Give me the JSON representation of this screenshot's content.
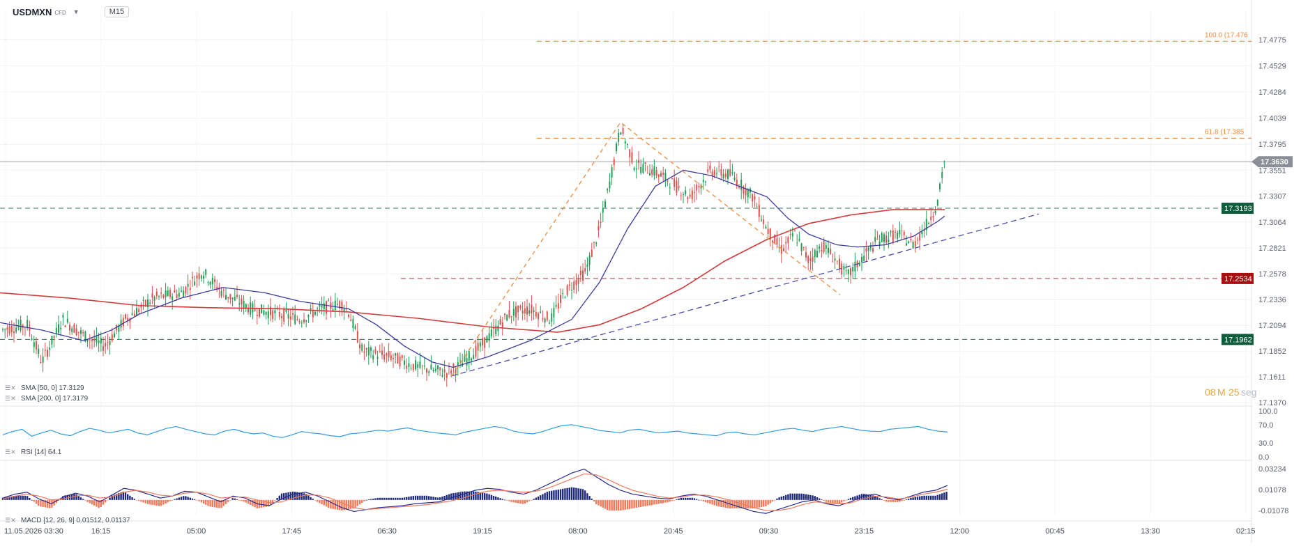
{
  "header": {
    "symbol": "USDMXN",
    "type": "CFD",
    "timeframe": "M15"
  },
  "countdown": {
    "minutes": "08",
    "m_unit": "M",
    "seconds": "25",
    "s_unit": "seg"
  },
  "indicators": {
    "sma50": "SMA [50, 0] 17.3129",
    "sma200": "SMA [200, 0] 17.3179",
    "rsi": "RSI [14] 64.1",
    "macd": "MACD [12, 26, 9] 0.01512, 0.01137"
  },
  "colors": {
    "up": "#1f9e54",
    "down": "#d9534f",
    "sma50": "#3c3a9e",
    "sma200": "#d13c3c",
    "fib": "#f08a3c",
    "support_green": "#0f5c3c",
    "resist_red": "#a60f0f",
    "trend": "#4a4aa6",
    "rsi": "#2e9be0",
    "macd_line": "#2a2a8c",
    "signal_line": "#f07a5a",
    "hist_pos": "#1f2a7a",
    "hist_neg": "#f07a5a",
    "price_tag": "#8a8e96",
    "countdown": "#f0a030"
  },
  "chart_data": {
    "type": "candlestick",
    "price_axis": {
      "ticks": [
        "17.4775",
        "17.4529",
        "17.4284",
        "17.4039",
        "17.3795",
        "17.3551",
        "17.3307",
        "17.3064",
        "17.2821",
        "17.2578",
        "17.2336",
        "17.2094",
        "17.1852",
        "17.1611",
        "17.1370"
      ],
      "range": [
        17.137,
        17.4775
      ]
    },
    "time_axis": {
      "labels": [
        "11.05.2026 03:30",
        "16:15",
        "05:00",
        "17:45",
        "06:30",
        "19:15",
        "08:00",
        "20:45",
        "09:30",
        "23:15",
        "12:00",
        "00:45",
        "13:30",
        "02:15"
      ]
    },
    "last_price": {
      "label": "17.3630",
      "value": 17.363
    },
    "levels": [
      {
        "label": "17.3193",
        "value": 17.3193,
        "style": "green"
      },
      {
        "label": "17.2534",
        "value": 17.2534,
        "style": "red"
      },
      {
        "label": "17.1962",
        "value": 17.1962,
        "style": "green"
      }
    ],
    "fibonacci": [
      {
        "label": "100.0 (17.476",
        "value": 17.476
      },
      {
        "label": "61.8 (17.385",
        "value": 17.385
      }
    ],
    "price_path": [
      [
        0,
        17.205
      ],
      [
        40,
        17.21
      ],
      [
        60,
        17.175
      ],
      [
        90,
        17.215
      ],
      [
        120,
        17.2
      ],
      [
        150,
        17.19
      ],
      [
        180,
        17.215
      ],
      [
        220,
        17.235
      ],
      [
        260,
        17.24
      ],
      [
        290,
        17.26
      ],
      [
        320,
        17.24
      ],
      [
        360,
        17.225
      ],
      [
        400,
        17.22
      ],
      [
        430,
        17.215
      ],
      [
        460,
        17.225
      ],
      [
        490,
        17.23
      ],
      [
        500,
        17.222
      ],
      [
        520,
        17.185
      ],
      [
        560,
        17.18
      ],
      [
        600,
        17.17
      ],
      [
        640,
        17.165
      ],
      [
        660,
        17.172
      ],
      [
        690,
        17.19
      ],
      [
        710,
        17.205
      ],
      [
        730,
        17.22
      ],
      [
        760,
        17.225
      ],
      [
        790,
        17.215
      ],
      [
        810,
        17.24
      ],
      [
        840,
        17.26
      ],
      [
        860,
        17.3
      ],
      [
        875,
        17.345
      ],
      [
        890,
        17.395
      ],
      [
        910,
        17.36
      ],
      [
        935,
        17.355
      ],
      [
        960,
        17.345
      ],
      [
        990,
        17.33
      ],
      [
        1020,
        17.355
      ],
      [
        1050,
        17.35
      ],
      [
        1080,
        17.33
      ],
      [
        1100,
        17.3
      ],
      [
        1120,
        17.28
      ],
      [
        1140,
        17.295
      ],
      [
        1160,
        17.27
      ],
      [
        1180,
        17.285
      ],
      [
        1200,
        17.27
      ],
      [
        1215,
        17.255
      ],
      [
        1240,
        17.275
      ],
      [
        1260,
        17.29
      ],
      [
        1290,
        17.295
      ],
      [
        1310,
        17.285
      ],
      [
        1330,
        17.305
      ],
      [
        1345,
        17.325
      ],
      [
        1355,
        17.365
      ]
    ],
    "sma50_path": [
      [
        0,
        17.212
      ],
      [
        60,
        17.205
      ],
      [
        120,
        17.195
      ],
      [
        160,
        17.205
      ],
      [
        200,
        17.22
      ],
      [
        260,
        17.235
      ],
      [
        320,
        17.245
      ],
      [
        380,
        17.24
      ],
      [
        430,
        17.232
      ],
      [
        470,
        17.228
      ],
      [
        500,
        17.225
      ],
      [
        540,
        17.21
      ],
      [
        580,
        17.19
      ],
      [
        620,
        17.175
      ],
      [
        650,
        17.17
      ],
      [
        700,
        17.18
      ],
      [
        760,
        17.195
      ],
      [
        820,
        17.215
      ],
      [
        860,
        17.25
      ],
      [
        900,
        17.3
      ],
      [
        940,
        17.34
      ],
      [
        980,
        17.355
      ],
      [
        1020,
        17.35
      ],
      [
        1060,
        17.34
      ],
      [
        1100,
        17.33
      ],
      [
        1130,
        17.31
      ],
      [
        1160,
        17.295
      ],
      [
        1200,
        17.285
      ],
      [
        1230,
        17.283
      ],
      [
        1270,
        17.285
      ],
      [
        1310,
        17.293
      ],
      [
        1345,
        17.307
      ],
      [
        1355,
        17.312
      ]
    ],
    "sma200_path": [
      [
        0,
        17.24
      ],
      [
        100,
        17.235
      ],
      [
        200,
        17.228
      ],
      [
        300,
        17.226
      ],
      [
        400,
        17.225
      ],
      [
        500,
        17.222
      ],
      [
        600,
        17.216
      ],
      [
        700,
        17.208
      ],
      [
        800,
        17.203
      ],
      [
        860,
        17.21
      ],
      [
        920,
        17.225
      ],
      [
        980,
        17.245
      ],
      [
        1040,
        17.27
      ],
      [
        1100,
        17.29
      ],
      [
        1160,
        17.305
      ],
      [
        1220,
        17.313
      ],
      [
        1280,
        17.318
      ],
      [
        1355,
        17.318
      ]
    ],
    "trendline": [
      [
        648,
        17.162
      ],
      [
        1490,
        17.314
      ]
    ],
    "fib_swing": [
      [
        648,
        17.162
      ],
      [
        890,
        17.4
      ],
      [
        1205,
        17.238
      ]
    ],
    "rsi_axis": {
      "ticks": [
        "100.0",
        "70.0",
        "30.0",
        "0.0"
      ]
    },
    "rsi_values": [
      48,
      55,
      60,
      45,
      52,
      58,
      50,
      46,
      55,
      62,
      58,
      52,
      56,
      60,
      52,
      48,
      55,
      62,
      66,
      60,
      55,
      50,
      48,
      56,
      60,
      54,
      50,
      52,
      45,
      42,
      48,
      55,
      52,
      50,
      46,
      44,
      50,
      52,
      55,
      58,
      56,
      60,
      63,
      58,
      55,
      52,
      50,
      48,
      54,
      58,
      62,
      66,
      63,
      56,
      52,
      50,
      55,
      62,
      68,
      70,
      66,
      62,
      57,
      55,
      52,
      58,
      60,
      56,
      52,
      54,
      56,
      52,
      50,
      48,
      46,
      52,
      54,
      50,
      48,
      52,
      56,
      60,
      62,
      58,
      55,
      60,
      63,
      66,
      62,
      58,
      56,
      55,
      60,
      62,
      64,
      66,
      60,
      56,
      54
    ],
    "macd_axis": {
      "ticks": [
        "0.03234",
        "0.01078",
        "-0.01078"
      ]
    },
    "macd_line": [
      0.002,
      0.006,
      0.008,
      0.001,
      -0.004,
      0.003,
      0.007,
      0.004,
      -0.002,
      0.005,
      0.012,
      0.01,
      0.006,
      0.002,
      0.004,
      0.009,
      0.008,
      0.003,
      -0.002,
      0.004,
      0.002,
      -0.004,
      -0.006,
      0.001,
      0.006,
      0.008,
      0.004,
      -0.002,
      -0.008,
      -0.012,
      -0.01,
      -0.008,
      -0.007,
      -0.006,
      -0.004,
      -0.003,
      -0.002,
      0.002,
      0.006,
      0.01,
      0.012,
      0.011,
      0.008,
      0.006,
      0.01,
      0.016,
      0.022,
      0.028,
      0.032,
      0.024,
      0.016,
      0.01,
      0.006,
      0.004,
      0.002,
      0.001,
      0.004,
      0.006,
      0.004,
      0.0,
      -0.004,
      -0.008,
      -0.012,
      -0.014,
      -0.01,
      -0.006,
      -0.002,
      0.0,
      -0.004,
      -0.006,
      -0.002,
      0.004,
      0.006,
      0.002,
      0.0,
      0.004,
      0.008,
      0.01,
      0.015
    ],
    "signal_line": [
      0.001,
      0.004,
      0.006,
      0.004,
      0.0,
      0.001,
      0.004,
      0.005,
      0.002,
      0.003,
      0.008,
      0.01,
      0.008,
      0.005,
      0.004,
      0.007,
      0.008,
      0.006,
      0.002,
      0.003,
      0.003,
      0.0,
      -0.003,
      -0.002,
      0.002,
      0.005,
      0.005,
      0.002,
      -0.003,
      -0.008,
      -0.01,
      -0.009,
      -0.008,
      -0.007,
      -0.006,
      -0.005,
      -0.003,
      -0.001,
      0.002,
      0.006,
      0.009,
      0.01,
      0.009,
      0.008,
      0.009,
      0.012,
      0.017,
      0.022,
      0.027,
      0.026,
      0.021,
      0.015,
      0.01,
      0.007,
      0.004,
      0.002,
      0.003,
      0.005,
      0.005,
      0.003,
      0.0,
      -0.004,
      -0.008,
      -0.011,
      -0.011,
      -0.009,
      -0.005,
      -0.002,
      -0.003,
      -0.004,
      -0.003,
      0.001,
      0.004,
      0.003,
      0.001,
      0.003,
      0.006,
      0.008,
      0.011
    ]
  }
}
